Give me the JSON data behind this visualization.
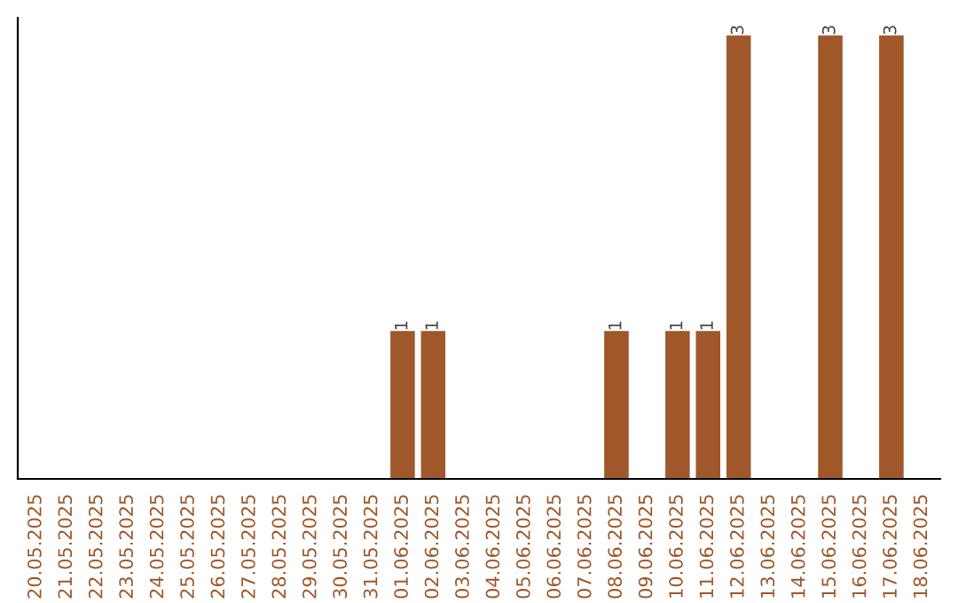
{
  "chart_data": {
    "type": "bar",
    "categories": [
      "20.05.2025",
      "21.05.2025",
      "22.05.2025",
      "23.05.2025",
      "24.05.2025",
      "25.05.2025",
      "26.05.2025",
      "27.05.2025",
      "28.05.2025",
      "29.05.2025",
      "30.05.2025",
      "31.05.2025",
      "01.06.2025",
      "02.06.2025",
      "03.06.2025",
      "04.06.2025",
      "05.06.2025",
      "06.06.2025",
      "07.06.2025",
      "08.06.2025",
      "09.06.2025",
      "10.06.2025",
      "11.06.2025",
      "12.06.2025",
      "13.06.2025",
      "14.06.2025",
      "15.06.2025",
      "16.06.2025",
      "17.06.2025",
      "18.06.2025"
    ],
    "values": [
      null,
      null,
      null,
      null,
      null,
      null,
      null,
      null,
      null,
      null,
      null,
      null,
      1,
      1,
      null,
      null,
      null,
      null,
      null,
      1,
      null,
      1,
      1,
      3,
      null,
      null,
      3,
      null,
      3,
      null
    ],
    "value_labels": [
      null,
      null,
      null,
      null,
      null,
      null,
      null,
      null,
      null,
      null,
      null,
      null,
      "1",
      "1",
      null,
      null,
      null,
      null,
      null,
      "1",
      null,
      "1",
      "1",
      "3",
      null,
      null,
      "3",
      null,
      "3",
      null
    ],
    "color": "#a0582a",
    "grid": false,
    "legend": false
  }
}
